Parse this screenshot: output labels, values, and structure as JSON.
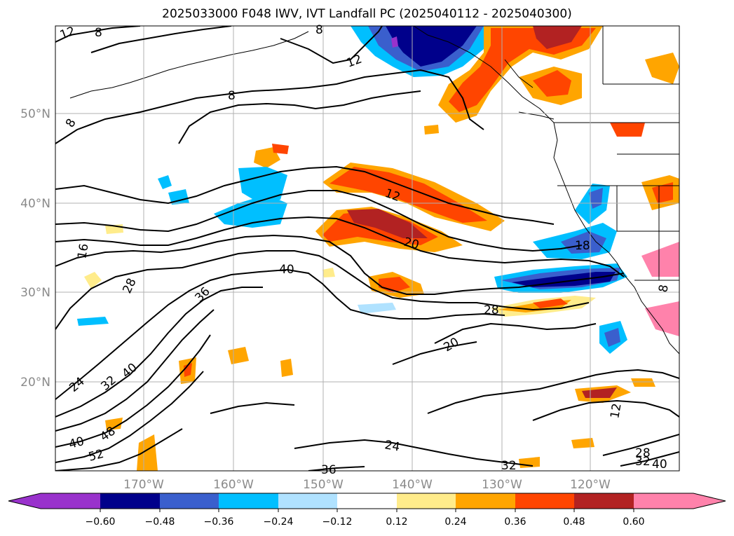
{
  "title": "2025033000 F048 IWV, IVT Landfall PC (2025040112 - 2025040300)",
  "axes": {
    "lat_ticks": [
      "50°N",
      "40°N",
      "30°N",
      "20°N"
    ],
    "lon_ticks": [
      "170°W",
      "160°W",
      "150°W",
      "140°W",
      "130°W",
      "120°W"
    ]
  },
  "colorbar": {
    "ticks": [
      "−0.60",
      "−0.48",
      "−0.36",
      "−0.24",
      "−0.12",
      "0.12",
      "0.24",
      "0.36",
      "0.48",
      "0.60"
    ],
    "colors": [
      "#9932cc",
      "#00008b",
      "#3a5fcd",
      "#00bfff",
      "#b0e2ff",
      "#ffffff",
      "#ffec8b",
      "#ffa500",
      "#ff4500",
      "#b22222",
      "#ff82ab"
    ],
    "extend": "both"
  },
  "contour_labels": [
    "12",
    "8",
    "12",
    "8",
    "8",
    "8",
    "12",
    "16",
    "20",
    "40",
    "28",
    "36",
    "28",
    "20",
    "24",
    "32",
    "40",
    "48",
    "52",
    "24",
    "40",
    "36",
    "32",
    "12",
    "28",
    "32",
    "40",
    "18",
    "8"
  ]
}
